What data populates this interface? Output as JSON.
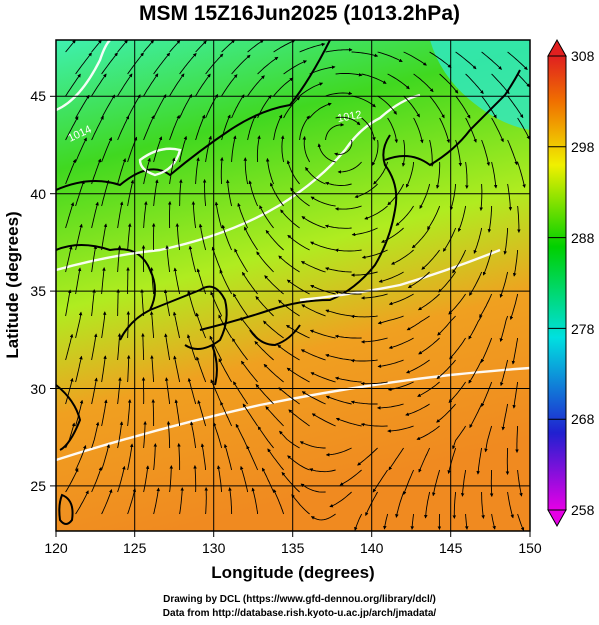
{
  "title": "MSM 15Z16Jun2025 (1013.2hPa)",
  "x_axis": {
    "label": "Longitude (degrees)",
    "range": [
      120,
      150
    ],
    "ticks": [
      "120",
      "125",
      "130",
      "135",
      "140",
      "145",
      "150"
    ]
  },
  "y_axis": {
    "label": "Latitude  (degrees)",
    "range": [
      22.4,
      47.6
    ],
    "ticks": [
      "25",
      "30",
      "35",
      "40",
      "45"
    ]
  },
  "colorbar": {
    "range": [
      258,
      308
    ],
    "ticks": [
      "258",
      "268",
      "278",
      "288",
      "298",
      "308"
    ],
    "colors": [
      "#e600e6",
      "#2020d0",
      "#00e0e0",
      "#00d000",
      "#f0f000",
      "#f07000",
      "#e02020"
    ]
  },
  "field_colors": {
    "ocean_north": "#3ff0b0",
    "land_north": "#40d820",
    "mid": "#b0ec20",
    "south": "#f0a020",
    "far_south": "#f08a20"
  },
  "isobar_labels": [
    "1012",
    "1014"
  ],
  "credits": {
    "line1": "Drawing by DCL (https://www.gfd-dennou.org/library/dcl/)",
    "line2": "Data from http://database.rish.kyoto-u.ac.jp/arch/jmadata/"
  }
}
